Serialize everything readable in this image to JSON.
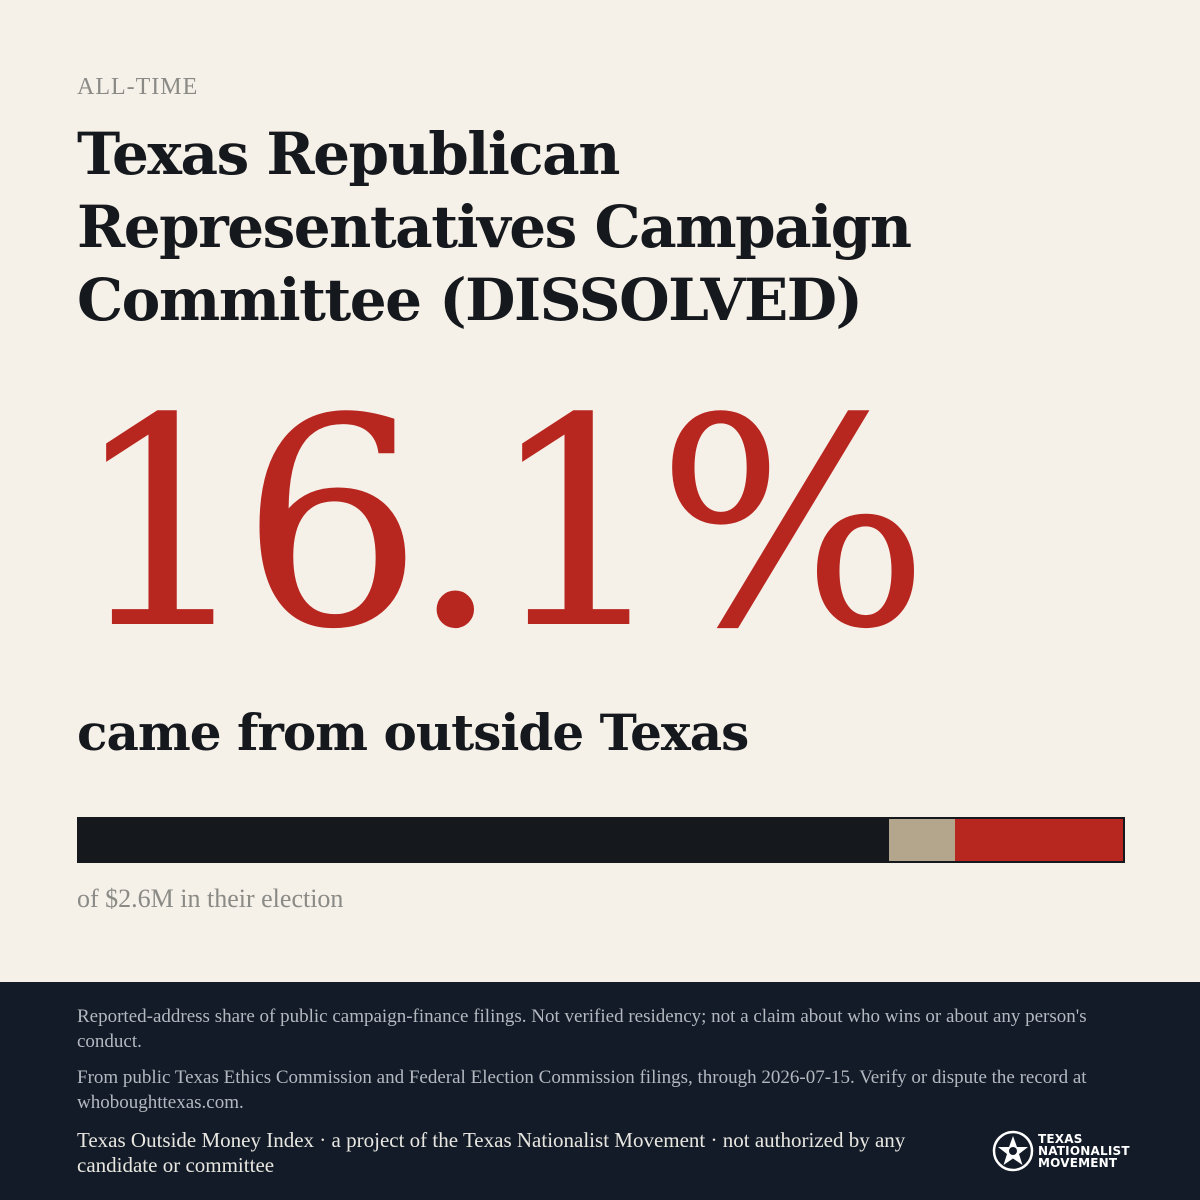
{
  "header": {
    "eyebrow": "ALL-TIME",
    "title": "Texas Republican Representatives Campaign Committee (DISSOLVED)"
  },
  "stat": {
    "percent_label": "16.1%",
    "caption": "came from outside Texas",
    "total_label": "of $2.6M in their election"
  },
  "bar": {
    "in_state_fraction": 0.776,
    "unknown_fraction": 0.063,
    "outside_fraction": 0.161,
    "colors": {
      "in_state": "#15181c",
      "unknown": "#b3a68c",
      "outside": "#b82620"
    }
  },
  "footer": {
    "disclaimer": "Reported-address share of public campaign-finance filings. Not verified residency; not a claim about who wins or about any person's conduct.",
    "source": "From public Texas Ethics Commission and Federal Election Commission filings, through 2026-07-15. Verify or dispute the record at whoboughttexas.com.",
    "credit": "Texas Outside Money Index · a project of the Texas Nationalist Movement · not authorized by any candidate or committee",
    "logo_lines": [
      "TEXAS",
      "NATIONALIST",
      "MOVEMENT"
    ]
  },
  "colors": {
    "background": "#f5f0e8",
    "accent": "#b82620",
    "ink": "#15181c",
    "footer_bg": "#121b27"
  }
}
